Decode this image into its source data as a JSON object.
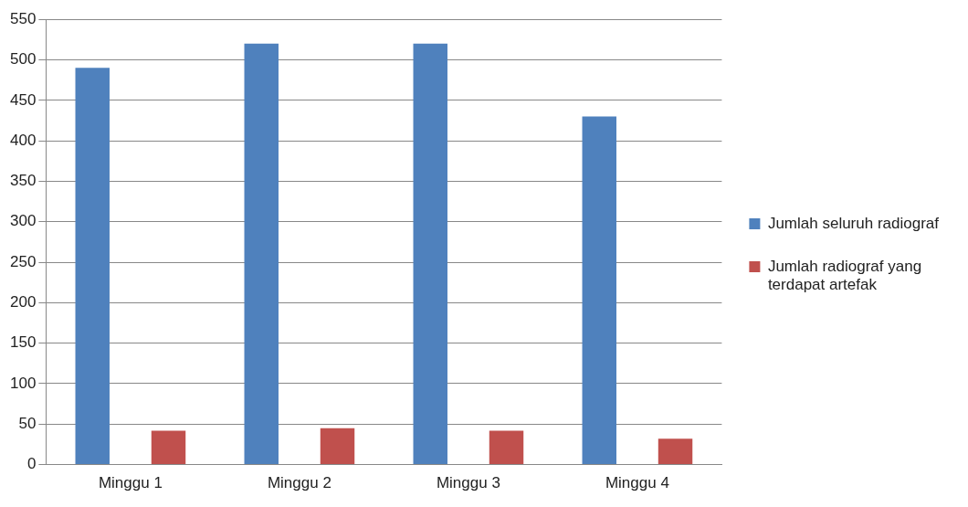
{
  "chart_data": {
    "type": "bar",
    "categories": [
      "Minggu 1",
      "Minggu 2",
      "Minggu 3",
      "Minggu 4"
    ],
    "series": [
      {
        "name": "Jumlah seluruh radiograf",
        "color": "#4f81bd",
        "values": [
          490,
          520,
          520,
          430
        ]
      },
      {
        "name": "Jumlah radiograf yang terdapat artefak",
        "color": "#c0504d",
        "values": [
          42,
          45,
          42,
          32
        ]
      }
    ],
    "ylim": [
      0,
      550
    ],
    "yticks": [
      0,
      50,
      100,
      150,
      200,
      250,
      300,
      350,
      400,
      450,
      500,
      550
    ],
    "grid": "y",
    "legend": "right"
  }
}
